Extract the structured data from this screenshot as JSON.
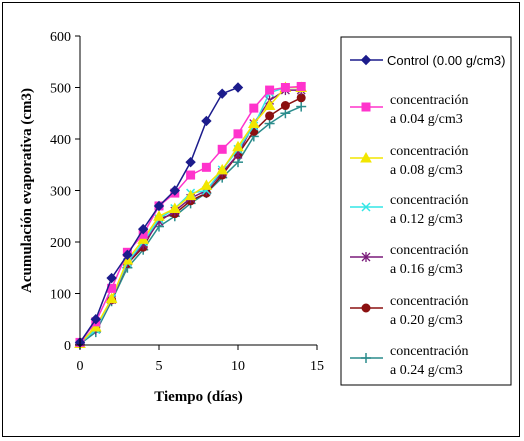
{
  "chart_data": {
    "type": "line",
    "xlabel": "Tiempo (días)",
    "ylabel": "Acumulación evaporativa (cm3)",
    "xlim": [
      0,
      15
    ],
    "ylim": [
      0,
      600
    ],
    "xticks": [
      0,
      5,
      10,
      15
    ],
    "yticks": [
      0,
      100,
      200,
      300,
      400,
      500,
      600
    ],
    "grid": false,
    "legend_position": "right",
    "series": [
      {
        "name": "Control (0.00 g/cm3)",
        "legend_lines": [
          "Control (0.00 g/cm3)"
        ],
        "color": "#1c1c8c",
        "marker": "diamond",
        "x": [
          0,
          1,
          2,
          3,
          4,
          5,
          6,
          7,
          8,
          9,
          10
        ],
        "y": [
          5,
          50,
          130,
          175,
          225,
          270,
          300,
          355,
          435,
          488,
          500
        ]
      },
      {
        "name": "concentración a 0.04 g/cm3",
        "legend_lines": [
          "concentración",
          "a 0.04 g/cm3"
        ],
        "color": "#ff33cc",
        "marker": "square",
        "x": [
          0,
          1,
          2,
          3,
          4,
          5,
          6,
          7,
          8,
          9,
          10,
          11,
          12,
          13,
          14
        ],
        "y": [
          5,
          45,
          110,
          180,
          215,
          270,
          295,
          330,
          345,
          380,
          410,
          460,
          495,
          500,
          502
        ]
      },
      {
        "name": "concentración a 0.08 g/cm3",
        "legend_lines": [
          "concentración",
          "a 0.08 g/cm3"
        ],
        "color": "#f2e600",
        "marker": "triangle",
        "x": [
          0,
          1,
          2,
          3,
          4,
          5,
          6,
          7,
          8,
          9,
          10,
          11,
          12,
          13,
          14
        ],
        "y": [
          3,
          35,
          90,
          165,
          205,
          250,
          265,
          290,
          310,
          340,
          385,
          430,
          465,
          500,
          500
        ]
      },
      {
        "name": "concentración a 0.12 g/cm3",
        "legend_lines": [
          "concentración",
          "a 0.12 g/cm3"
        ],
        "color": "#33e6e6",
        "marker": "x",
        "x": [
          0,
          1,
          2,
          3,
          4,
          5,
          6,
          7,
          8,
          9,
          10,
          11,
          12,
          13,
          14
        ],
        "y": [
          3,
          30,
          90,
          160,
          200,
          245,
          265,
          295,
          300,
          340,
          380,
          425,
          490,
          500,
          500
        ]
      },
      {
        "name": "concentración a 0.16 g/cm3",
        "legend_lines": [
          "concentración",
          "a 0.16 g/cm3"
        ],
        "color": "#7a1a7a",
        "marker": "asterisk",
        "x": [
          0,
          1,
          2,
          3,
          4,
          5,
          6,
          7,
          8,
          9,
          10,
          11,
          12,
          13,
          14
        ],
        "y": [
          3,
          30,
          88,
          160,
          195,
          240,
          260,
          285,
          300,
          335,
          370,
          430,
          475,
          495,
          495
        ]
      },
      {
        "name": "concentración a 0.20 g/cm3",
        "legend_lines": [
          "concentración",
          "a 0.20 g/cm3"
        ],
        "color": "#8b1010",
        "marker": "circle",
        "x": [
          0,
          1,
          2,
          3,
          4,
          5,
          6,
          7,
          8,
          9,
          10,
          11,
          12,
          13,
          14
        ],
        "y": [
          3,
          35,
          88,
          158,
          190,
          245,
          255,
          280,
          295,
          330,
          370,
          415,
          445,
          465,
          480
        ]
      },
      {
        "name": "concentración a 0.24 g/cm3",
        "legend_lines": [
          "concentración",
          "a 0.24 g/cm3"
        ],
        "color": "#2a8c8c",
        "marker": "plus",
        "x": [
          0,
          1,
          2,
          3,
          4,
          5,
          6,
          7,
          8,
          9,
          10,
          11,
          12,
          13,
          14
        ],
        "y": [
          2,
          25,
          85,
          150,
          185,
          230,
          250,
          275,
          295,
          325,
          355,
          405,
          430,
          450,
          463
        ]
      }
    ]
  }
}
